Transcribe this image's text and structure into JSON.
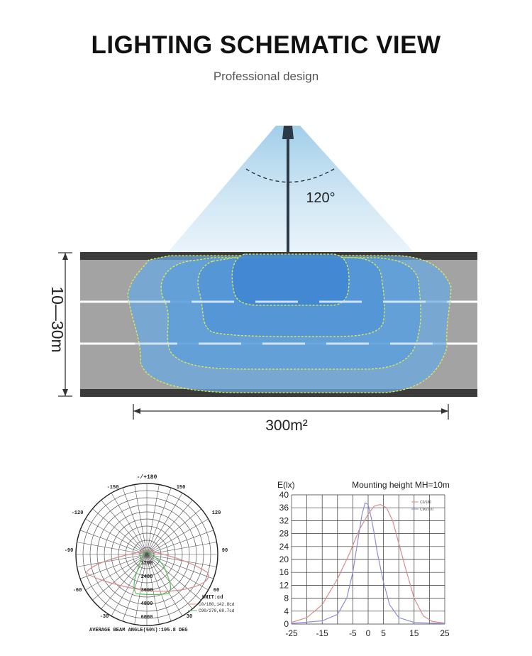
{
  "header": {
    "title": "LIGHTING SCHEMATIC VIEW",
    "subtitle": "Professional design"
  },
  "schematic": {
    "beam_angle_label": "120°",
    "road_width_label": "10—30m",
    "area_label": "300m²",
    "colors": {
      "light_blue": "#b9d8ee",
      "pool_blue": "#4f93d6",
      "road_gray": "#a3a3a3",
      "curb_dark": "#3b3b3b",
      "contour_yellow": "#e4ec4a"
    }
  },
  "polar": {
    "top_label": "-/+180",
    "angle_labels": [
      "-150",
      "150",
      "-120",
      "120",
      "-90",
      "90",
      "-60",
      "60",
      "-30",
      "30"
    ],
    "radial_labels": [
      "1200",
      "2400",
      "3600",
      "4800",
      "6000"
    ],
    "unit_label": "UNIT:cd",
    "legend": [
      "C0/180,142.8cd",
      "C90/270,68.7cd"
    ],
    "footer": "AVERAGE BEAM ANGLE(50%):105.8 DEG"
  },
  "chart_data": {
    "type": "line",
    "title": "Mounting height  MH=10m",
    "ylabel": "E(lx)",
    "xlabel": "",
    "xlim": [
      -25,
      25
    ],
    "ylim": [
      0,
      40
    ],
    "x_tick_labels": [
      "-25",
      "-15",
      "-5",
      "0",
      "5",
      "15",
      "25"
    ],
    "y_tick_labels": [
      "0",
      "4",
      "8",
      "12",
      "16",
      "20",
      "24",
      "28",
      "32",
      "36",
      "40"
    ],
    "grid": true,
    "legend_position": "top-right",
    "series": [
      {
        "name": "C0/180",
        "color": "#d98a8a",
        "x": [
          -25,
          -20,
          -15,
          -10,
          -6,
          -3,
          0,
          2,
          4,
          6,
          8,
          10,
          12,
          15,
          18,
          21,
          25
        ],
        "y": [
          0.5,
          2,
          6,
          14,
          22,
          29,
          34,
          36.5,
          37,
          36,
          32,
          25,
          18,
          8,
          2.5,
          0.8,
          0.3
        ]
      },
      {
        "name": "C90/270",
        "color": "#8c8cd9",
        "x": [
          -25,
          -15,
          -10,
          -7,
          -5,
          -3,
          -2,
          -1,
          0,
          1,
          2,
          3,
          5,
          7,
          10,
          15,
          25
        ],
        "y": [
          0.2,
          1,
          3,
          8,
          16,
          28,
          34,
          37.5,
          37,
          33,
          28,
          22,
          13,
          6,
          2,
          0.5,
          0.1
        ]
      }
    ]
  }
}
